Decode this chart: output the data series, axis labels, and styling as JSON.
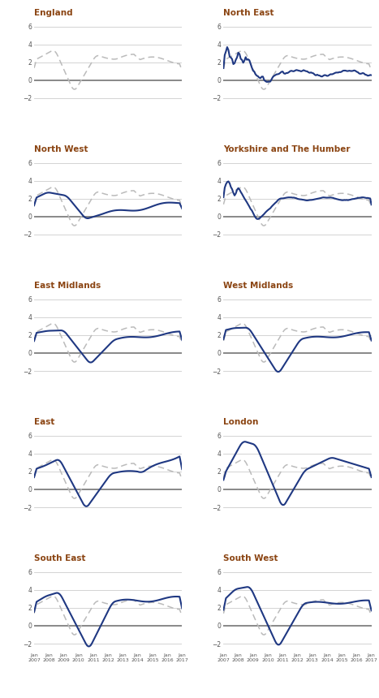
{
  "panels": [
    "England",
    "North East",
    "North West",
    "Yorkshire and The Humber",
    "East Midlands",
    "West Midlands",
    "East",
    "London",
    "South East",
    "South West"
  ],
  "title_color": "#8B4513",
  "line_blue": "#1F3882",
  "line_gray": "#BBBBBB",
  "ylim": [
    -3,
    7
  ],
  "yticks": [
    -2,
    0,
    2,
    4,
    6
  ],
  "years": [
    2007,
    2008,
    2009,
    2010,
    2011,
    2012,
    2013,
    2014,
    2015,
    2016,
    2017
  ],
  "n_points": 121,
  "background": "#FFFFFF",
  "zero_line_color": "#888888",
  "grid_color": "#CCCCCC"
}
